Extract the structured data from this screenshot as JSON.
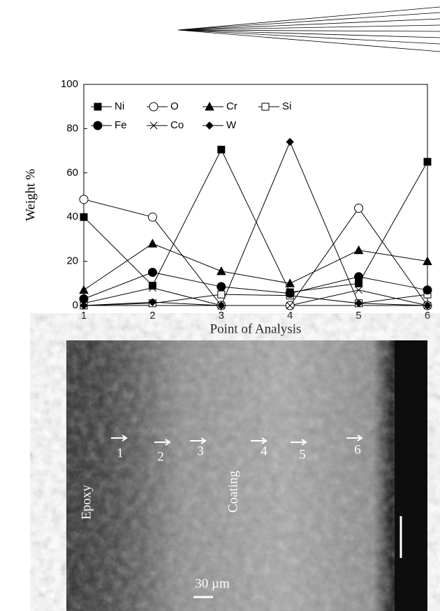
{
  "chart_data": {
    "type": "line",
    "x": [
      1,
      2,
      3,
      4,
      5,
      6
    ],
    "xlim": [
      1,
      6
    ],
    "xticks": [
      1,
      2,
      3,
      4,
      5,
      6
    ],
    "ylim": [
      0,
      100
    ],
    "yticks": [
      0,
      20,
      40,
      60,
      80,
      100
    ],
    "x_label": "Point of Analysis",
    "y_label": "Weight %",
    "grid": false,
    "legend": "top-left",
    "series": [
      {
        "name": "Ni",
        "color": "#000000",
        "marker": "square-filled",
        "values": [
          40,
          9,
          70.5,
          6,
          10,
          65
        ]
      },
      {
        "name": "O",
        "color": "#000000",
        "marker": "circle-open",
        "values": [
          48,
          40,
          0,
          0,
          44,
          0
        ]
      },
      {
        "name": "Cr",
        "color": "#000000",
        "marker": "triangle-filled",
        "values": [
          7,
          28,
          15.5,
          10,
          25,
          20
        ]
      },
      {
        "name": "Si",
        "color": "#000000",
        "marker": "square-open",
        "values": [
          0,
          1,
          5,
          4.5,
          1,
          5
        ]
      },
      {
        "name": "Fe",
        "color": "#000000",
        "marker": "circle-filled",
        "values": [
          3,
          15,
          8.5,
          5.5,
          13,
          7
        ]
      },
      {
        "name": "Co",
        "color": "#000000",
        "marker": "cross",
        "values": [
          1,
          8,
          0,
          0,
          7,
          0
        ]
      },
      {
        "name": "W",
        "color": "#000000",
        "marker": "diamond-filled",
        "values": [
          0,
          1.5,
          0,
          74,
          1,
          0
        ]
      }
    ]
  },
  "micrograph": {
    "regions": [
      "Epoxy",
      "Coating"
    ],
    "points": [
      "1",
      "2",
      "3",
      "4",
      "5",
      "6"
    ],
    "scale_bar": "30 µm"
  }
}
